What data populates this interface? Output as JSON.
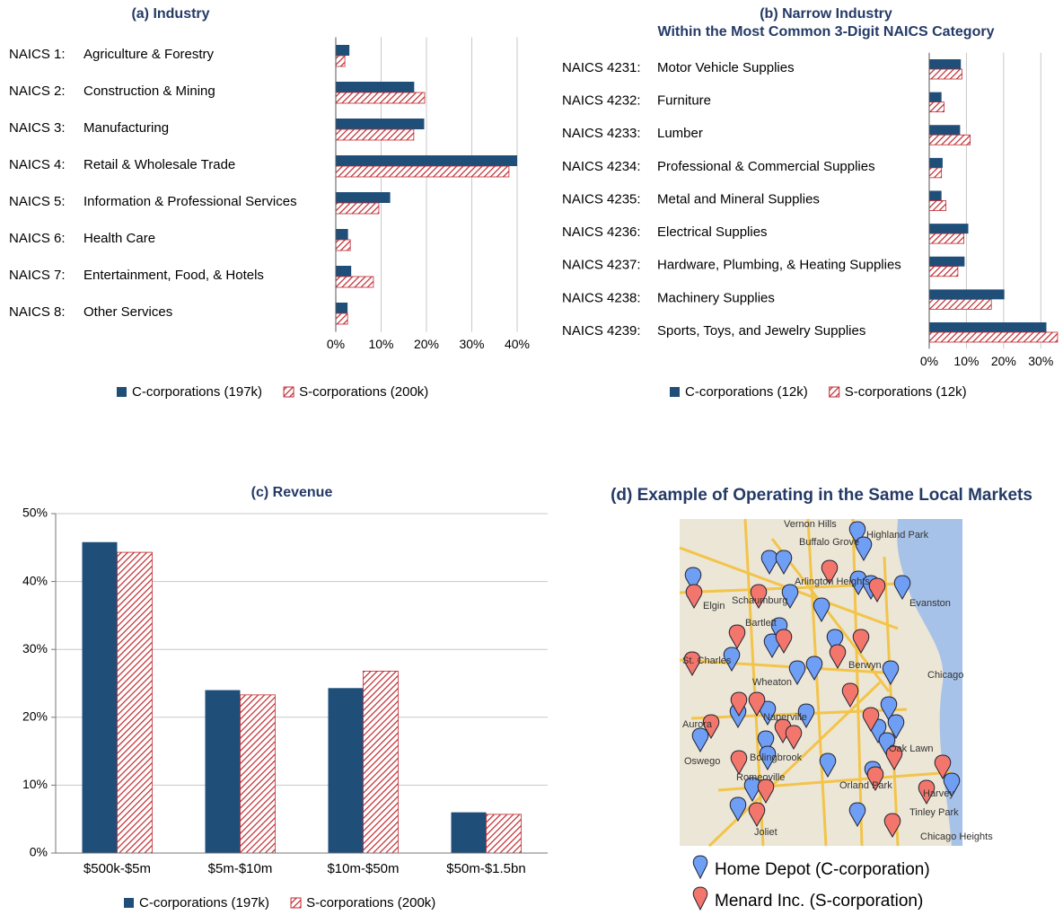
{
  "chart_data": [
    {
      "type": "barh",
      "title": "(a) Industry",
      "codes": [
        "NAICS 1:",
        "NAICS 2:",
        "NAICS 3:",
        "NAICS 4:",
        "NAICS 5:",
        "NAICS 6:",
        "NAICS 7:",
        "NAICS 8:"
      ],
      "categories": [
        "Agriculture & Forestry",
        "Construction & Mining",
        "Manufacturing",
        "Retail & Wholesale Trade",
        "Information & Professional Services",
        "Health Care",
        "Entertainment, Food, & Hotels",
        "Other Services"
      ],
      "series": [
        {
          "name": "C-corporations (197k)",
          "color": "#1f4e79",
          "values": [
            3,
            17.3,
            19.5,
            40,
            12,
            2.7,
            3.4,
            2.6
          ]
        },
        {
          "name": "S-corporations (200k)",
          "color": "#c0272d",
          "pattern": "hatch",
          "values": [
            2,
            19.6,
            17.2,
            38.2,
            9.5,
            3.2,
            8.3,
            2.6
          ]
        }
      ],
      "xlim": [
        0,
        40
      ],
      "xticks": [
        {
          "value": 0,
          "label": "0%"
        },
        {
          "value": 10,
          "label": "10%"
        },
        {
          "value": 20,
          "label": "20%"
        },
        {
          "value": 30,
          "label": "30%"
        },
        {
          "value": 40,
          "label": "40%"
        }
      ],
      "grid": true
    },
    {
      "type": "barh",
      "title": "(b) Narrow Industry",
      "subtitle": "Within the Most Common 3-Digit NAICS Category",
      "codes": [
        "NAICS 4231:",
        "NAICS 4232:",
        "NAICS 4233:",
        "NAICS 4234:",
        "NAICS 4235:",
        "NAICS 4236:",
        "NAICS 4237:",
        "NAICS 4238:",
        "NAICS 4239:"
      ],
      "categories": [
        "Motor Vehicle Supplies",
        "Furniture",
        "Lumber",
        "Professional & Commercial Supplies",
        "Metal and Mineral Supplies",
        "Electrical Supplies",
        "Hardware, Plumbing, & Heating Supplies",
        "Machinery Supplies",
        "Sports, Toys, and Jewelry Supplies"
      ],
      "series": [
        {
          "name": "C-corporations (12k)",
          "color": "#1f4e79",
          "values": [
            8.5,
            3.3,
            8.3,
            3.6,
            3.3,
            10.5,
            9.5,
            20.2,
            31.5
          ]
        },
        {
          "name": "S-corporations (12k)",
          "color": "#c0272d",
          "pattern": "hatch",
          "values": [
            8.8,
            4,
            11,
            3.3,
            4.5,
            9.3,
            7.7,
            16.7,
            34.5
          ]
        }
      ],
      "xlim": [
        0,
        35
      ],
      "xticks": [
        {
          "value": 0,
          "label": "0%"
        },
        {
          "value": 10,
          "label": "10%"
        },
        {
          "value": 20,
          "label": "20%"
        },
        {
          "value": 30,
          "label": "30%"
        }
      ],
      "grid": true
    },
    {
      "type": "bar",
      "title": "(c) Revenue",
      "categories": [
        "$500k-$5m",
        "$5m-$10m",
        "$10m-$50m",
        "$50m-$1.5bn"
      ],
      "series": [
        {
          "name": "C-corporations (197k)",
          "color": "#1f4e79",
          "values": [
            45.8,
            24,
            24.3,
            6
          ]
        },
        {
          "name": "S-corporations (200k)",
          "color": "#c0272d",
          "pattern": "hatch",
          "values": [
            44.3,
            23.3,
            26.8,
            5.7
          ]
        }
      ],
      "ylim": [
        0,
        50
      ],
      "yticks": [
        {
          "value": 0,
          "label": "0%"
        },
        {
          "value": 10,
          "label": "10%"
        },
        {
          "value": 20,
          "label": "20%"
        },
        {
          "value": 30,
          "label": "30%"
        },
        {
          "value": 40,
          "label": "40%"
        },
        {
          "value": 50,
          "label": "50%"
        }
      ],
      "grid": true
    }
  ],
  "map": {
    "title": "(d) Example of Operating in the Same Local Markets",
    "places": [
      "Vernon Hills",
      "Buffalo Grove",
      "Highland Park",
      "Arlington Heights",
      "Elgin",
      "Schaumburg",
      "Evanston",
      "Bartlett",
      "St. Charles",
      "Wheaton",
      "Chicago",
      "Berwyn",
      "Aurora",
      "Naperville",
      "Bolingbrook",
      "Oswego",
      "Romeoville",
      "Oak Lawn",
      "Orland Park",
      "Harvey",
      "Tinley Park",
      "Joliet",
      "Chicago Heights"
    ],
    "legend": [
      "Home Depot (C-corporation)",
      "Menard Inc. (S-corporation)"
    ]
  }
}
